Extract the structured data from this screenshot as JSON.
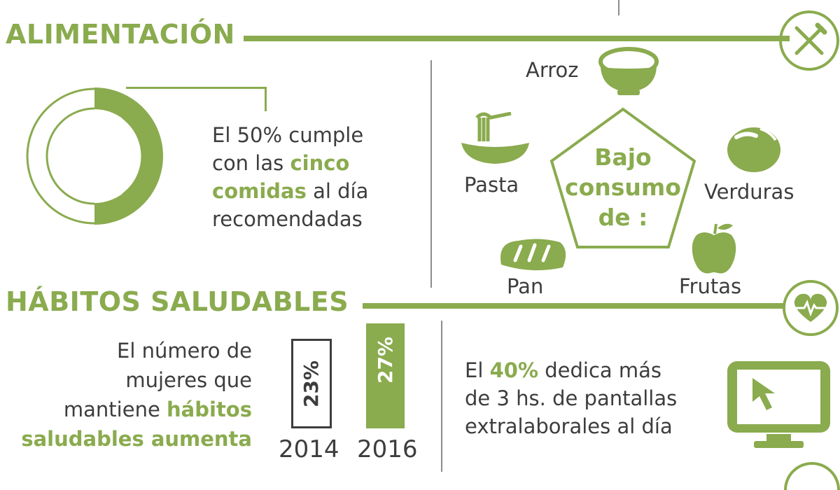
{
  "colors": {
    "accent": "#8aab4e",
    "text": "#3d3d3d",
    "divider": "#8c8c8c"
  },
  "alimentacion": {
    "heading": "ALIMENTACIÓN",
    "icon": "fork-knife-icon",
    "donut": {
      "percent": 50
    },
    "text": {
      "line1": "El 50% cumple",
      "line2_a": "con las ",
      "line2_b": "cinco",
      "line3_a": "comidas",
      "line3_b": " al día",
      "line4": "recomendadas"
    },
    "low_consumption": {
      "line1": "Bajo",
      "line2": "consumo",
      "line3": "de :",
      "foods": {
        "arroz": {
          "label": "Arroz",
          "icon": "rice-bowl-icon"
        },
        "pasta": {
          "label": "Pasta",
          "icon": "pasta-icon"
        },
        "verduras": {
          "label": "Verduras",
          "icon": "tomato-icon"
        },
        "pan": {
          "label": "Pan",
          "icon": "bread-icon"
        },
        "frutas": {
          "label": "Frutas",
          "icon": "apple-icon"
        }
      }
    }
  },
  "habitos": {
    "heading": "HÁBITOS SALUDABLES",
    "icon": "heart-pulse-icon",
    "text": {
      "line1": "El número de",
      "line2": "mujeres que",
      "line3_a": "mantiene ",
      "line3_b": "hábitos",
      "line4": "saludables aumenta"
    },
    "bars": [
      {
        "year": "2014",
        "label": "23%",
        "value": 23
      },
      {
        "year": "2016",
        "label": "27%",
        "value": 27
      }
    ],
    "screen_text": {
      "line1_a": "El ",
      "line1_b": "40%",
      "line1_c": " dedica más",
      "line2": "de 3 hs. de pantallas",
      "line3": "extralaborales al día"
    },
    "screen_icon": "monitor-cursor-icon"
  }
}
